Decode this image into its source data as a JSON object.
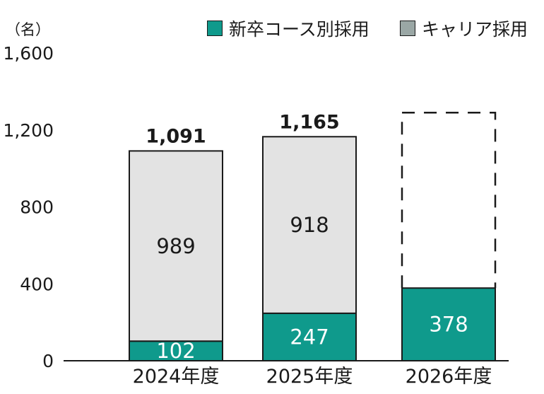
{
  "chart_data": {
    "type": "bar",
    "stacked": true,
    "unit_label": "（名）",
    "categories": [
      "2024年度",
      "2025年度",
      "2026年度"
    ],
    "series": [
      {
        "name": "新卒コース別採用",
        "values": [
          102,
          247,
          378
        ],
        "color": "#0f9a8c",
        "label_color": "#ffffff"
      },
      {
        "name": "キャリア採用",
        "values": [
          989,
          918,
          null
        ],
        "color": "#e3e3e3",
        "label_color": "#1a1a1a"
      }
    ],
    "totals": [
      "1,091",
      "1,165",
      null
    ],
    "placeholder": {
      "category_index": 2,
      "value": 1290,
      "style": "dashed outline"
    },
    "ylim": [
      0,
      1600
    ],
    "yticks": [
      0,
      400,
      800,
      1200,
      1600
    ],
    "ytick_labels": [
      "0",
      "400",
      "800",
      "1,200",
      "1,600"
    ],
    "legend_position": "top-right",
    "grid": false
  }
}
